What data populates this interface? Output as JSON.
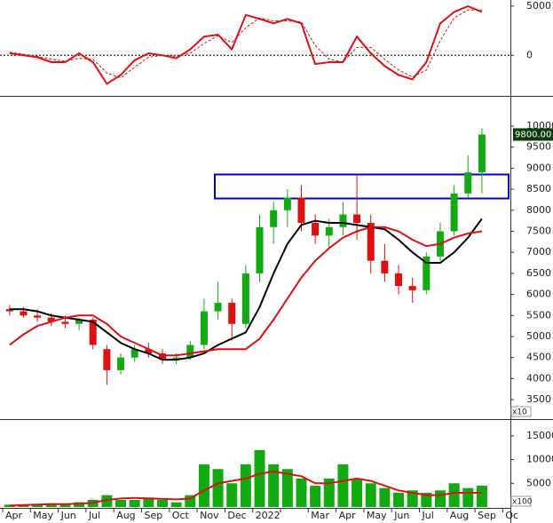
{
  "chart_data": [
    {
      "type": "line",
      "ylim": [
        -3950,
        5440
      ],
      "yticks": [
        0,
        5000
      ],
      "zero_line": true,
      "series": [
        {
          "color": "#dd1111",
          "dash": false,
          "values": [
            200,
            0,
            -200,
            -700,
            -700,
            200,
            -700,
            -2900,
            -2000,
            -500,
            200,
            0,
            -300,
            600,
            1900,
            2100,
            600,
            4100,
            3700,
            3250,
            3700,
            3250,
            -900,
            -700,
            -700,
            1900,
            200,
            -1100,
            -2000,
            -2450,
            -700,
            3250,
            4400,
            5000,
            4400,
            null,
            null,
            null
          ]
        },
        {
          "color": "#dd1111",
          "dash": true,
          "values": [
            300,
            100,
            -100,
            -400,
            -600,
            -300,
            -400,
            -1800,
            -2300,
            -1200,
            -200,
            0,
            -100,
            200,
            1200,
            2000,
            1300,
            2800,
            3800,
            3500,
            3500,
            3400,
            1000,
            -400,
            -700,
            800,
            800,
            -400,
            -1500,
            -2200,
            -1500,
            1500,
            3800,
            4600,
            4600,
            null,
            null,
            null
          ]
        }
      ]
    },
    {
      "type": "candlestick",
      "ylim": [
        3080,
        10675
      ],
      "yticks": [
        3500,
        4000,
        4500,
        5000,
        5500,
        6000,
        6500,
        7000,
        7500,
        8000,
        8500,
        9000,
        9500,
        10000
      ],
      "up_color": "#11aa11",
      "down_color": "#dd1111",
      "unit_note": "x10",
      "last_price_label": "9800.00",
      "highlight_range": [
        8280,
        8850
      ],
      "highlight_color": "#0000cc",
      "open": [
        5650,
        5600,
        5500,
        5450,
        5350,
        5300,
        5400,
        4700,
        4200,
        4500,
        4700,
        4600,
        4450,
        4500,
        4800,
        5600,
        5800,
        5300,
        6500,
        7600,
        8000,
        8300,
        7700,
        7400,
        7600,
        7900,
        7700,
        6800,
        6500,
        6200,
        6100,
        6900,
        7500,
        8400,
        8900,
        null,
        null,
        null
      ],
      "high": [
        5750,
        5700,
        5650,
        5550,
        5500,
        5450,
        5450,
        4800,
        4600,
        4800,
        4850,
        4700,
        4600,
        4900,
        5900,
        6300,
        5900,
        6700,
        7900,
        8200,
        8500,
        8600,
        7900,
        7800,
        8200,
        8850,
        7900,
        7200,
        6700,
        6400,
        7000,
        7700,
        8600,
        9300,
        9950,
        null,
        null,
        null
      ],
      "low": [
        5500,
        5450,
        5350,
        5250,
        5200,
        5150,
        4700,
        3850,
        4100,
        4400,
        4500,
        4350,
        4350,
        4450,
        4700,
        5400,
        4900,
        5200,
        6300,
        7200,
        7600,
        7500,
        7200,
        7100,
        7400,
        7300,
        6500,
        6300,
        6000,
        5800,
        6000,
        6800,
        7400,
        8300,
        8400,
        null,
        null,
        null
      ],
      "close": [
        5600,
        5500,
        5450,
        5350,
        5300,
        5400,
        4800,
        4200,
        4500,
        4700,
        4600,
        4450,
        4500,
        4800,
        5600,
        5800,
        5300,
        6500,
        7600,
        8000,
        8300,
        7700,
        7400,
        7600,
        7900,
        7700,
        6800,
        6500,
        6200,
        6100,
        6900,
        7500,
        8400,
        8900,
        9800,
        null,
        null,
        null
      ],
      "series": [
        {
          "color": "#000000",
          "dash": false,
          "values": [
            5650,
            5650,
            5600,
            5500,
            5450,
            5400,
            5350,
            5100,
            4850,
            4700,
            4600,
            4450,
            4450,
            4500,
            4600,
            4800,
            4950,
            5100,
            5700,
            6500,
            7200,
            7650,
            7750,
            7700,
            7700,
            7650,
            7600,
            7550,
            7300,
            7000,
            6750,
            6750,
            7000,
            7350,
            7800,
            null,
            null,
            null
          ]
        },
        {
          "color": "#dd1111",
          "dash": false,
          "values": [
            4800,
            5050,
            5250,
            5350,
            5450,
            5500,
            5500,
            5300,
            5000,
            4850,
            4700,
            4550,
            4550,
            4600,
            4650,
            4700,
            4700,
            4700,
            4950,
            5400,
            5900,
            6400,
            6800,
            7100,
            7350,
            7500,
            7600,
            7600,
            7500,
            7300,
            7150,
            7200,
            7350,
            7450,
            7500,
            null,
            null,
            null
          ]
        }
      ]
    },
    {
      "type": "bar",
      "ylim": [
        0,
        17960
      ],
      "yticks": [
        5000,
        10000,
        15000
      ],
      "bar_color": "#11aa11",
      "unit_note": "x100",
      "categories": [
        "Apr",
        null,
        "May",
        null,
        "Jun",
        null,
        "Jul",
        null,
        "Aug",
        null,
        "Sep",
        null,
        "Oct",
        null,
        "Nov",
        null,
        "Dec",
        null,
        "2022",
        null,
        null,
        null,
        "Mar",
        null,
        "Apr",
        null,
        "May",
        null,
        "Jun",
        null,
        "Jul",
        null,
        "Aug",
        null,
        "Sep",
        null,
        "Oc",
        null
      ],
      "values": [
        500,
        600,
        400,
        800,
        500,
        1000,
        1500,
        2500,
        1500,
        1500,
        2000,
        1500,
        1000,
        2500,
        9000,
        8000,
        5000,
        9000,
        12000,
        9000,
        8000,
        6000,
        4500,
        6000,
        9000,
        6000,
        5000,
        4000,
        3000,
        3500,
        3000,
        3500,
        5000,
        4000,
        4500,
        null,
        null,
        null
      ],
      "series": [
        {
          "color": "#dd1111",
          "dash": false,
          "values": [
            300,
            400,
            500,
            600,
            600,
            700,
            900,
            1500,
            1800,
            1900,
            1800,
            1700,
            1600,
            1800,
            3500,
            5000,
            5500,
            6000,
            7000,
            7500,
            7000,
            6500,
            5000,
            5000,
            5500,
            6000,
            5500,
            4500,
            3500,
            3000,
            2500,
            2500,
            3000,
            3000,
            3000,
            null,
            null,
            null
          ]
        }
      ]
    }
  ]
}
